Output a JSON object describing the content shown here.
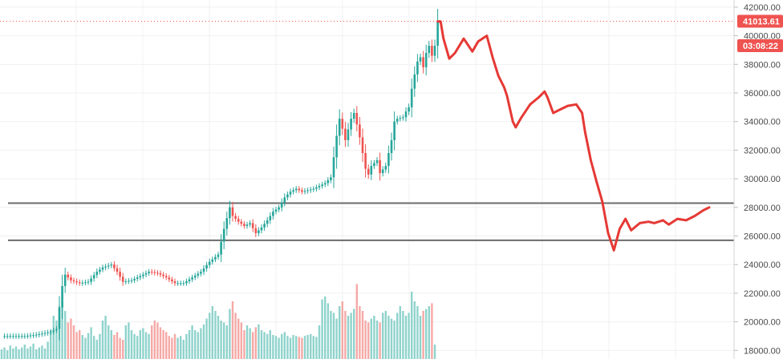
{
  "chart_data": {
    "type": "candlestick",
    "title": "",
    "xlabel": "",
    "ylabel": "",
    "ylim": [
      17400,
      42500
    ],
    "y_ticks": [
      "18000.00",
      "20000.00",
      "22000.00",
      "24000.00",
      "26000.00",
      "28000.00",
      "30000.00",
      "32000.00",
      "34000.00",
      "36000.00",
      "38000.00",
      "40000.00",
      "42000.00"
    ],
    "y_tick_values": [
      18000,
      20000,
      22000,
      24000,
      26000,
      28000,
      30000,
      32000,
      34000,
      36000,
      38000,
      40000,
      42000
    ],
    "grid": true,
    "last_price": 41013.61,
    "last_price_label": "41013.61",
    "countdown_label": "03:08:22",
    "horizontal_levels": [
      28300,
      25700
    ],
    "price_path": [
      [
        0,
        19000
      ],
      [
        8,
        19000
      ],
      [
        12,
        19100
      ],
      [
        17,
        19300
      ],
      [
        19,
        19500
      ],
      [
        20,
        21000
      ],
      [
        21,
        22500
      ],
      [
        22,
        23300
      ],
      [
        24,
        22900
      ],
      [
        27,
        22700
      ],
      [
        30,
        22800
      ],
      [
        33,
        23500
      ],
      [
        35,
        23800
      ],
      [
        38,
        24000
      ],
      [
        40,
        23500
      ],
      [
        42,
        22800
      ],
      [
        45,
        22900
      ],
      [
        48,
        23200
      ],
      [
        51,
        23500
      ],
      [
        54,
        23400
      ],
      [
        57,
        23100
      ],
      [
        60,
        22700
      ],
      [
        63,
        22700
      ],
      [
        66,
        23100
      ],
      [
        69,
        23500
      ],
      [
        72,
        24200
      ],
      [
        75,
        24700
      ],
      [
        77,
        26500
      ],
      [
        79,
        28000
      ],
      [
        80,
        27400
      ],
      [
        82,
        27000
      ],
      [
        84,
        26700
      ],
      [
        86,
        26900
      ],
      [
        88,
        26200
      ],
      [
        90,
        26600
      ],
      [
        92,
        27100
      ],
      [
        94,
        27700
      ],
      [
        96,
        28000
      ],
      [
        98,
        28700
      ],
      [
        100,
        29100
      ],
      [
        102,
        29300
      ],
      [
        104,
        29100
      ],
      [
        106,
        29200
      ],
      [
        108,
        29300
      ],
      [
        110,
        29500
      ],
      [
        112,
        29700
      ],
      [
        114,
        30100
      ],
      [
        115,
        31500
      ],
      [
        116,
        33000
      ],
      [
        117,
        34200
      ],
      [
        118,
        33500
      ],
      [
        119,
        32700
      ],
      [
        121,
        34200
      ],
      [
        122,
        34600
      ],
      [
        123,
        33800
      ],
      [
        124,
        32900
      ],
      [
        125,
        31800
      ],
      [
        126,
        30700
      ],
      [
        127,
        30300
      ],
      [
        128,
        30900
      ],
      [
        130,
        31300
      ],
      [
        131,
        30400
      ],
      [
        133,
        30900
      ],
      [
        134,
        31800
      ],
      [
        135,
        32700
      ],
      [
        136,
        34000
      ],
      [
        137,
        34200
      ],
      [
        139,
        34300
      ],
      [
        140,
        34700
      ],
      [
        141,
        35000
      ],
      [
        142,
        36300
      ],
      [
        143,
        37300
      ],
      [
        144,
        38200
      ],
      [
        145,
        38500
      ],
      [
        146,
        37800
      ],
      [
        147,
        38800
      ],
      [
        148,
        39300
      ],
      [
        149,
        38600
      ],
      [
        150,
        39300
      ],
      [
        151,
        41000
      ]
    ],
    "projection": [
      [
        151,
        41000
      ],
      [
        152,
        41000
      ],
      [
        153,
        39800
      ],
      [
        155,
        38400
      ],
      [
        157,
        38800
      ],
      [
        160,
        39800
      ],
      [
        161,
        39500
      ],
      [
        163,
        38900
      ],
      [
        165,
        39600
      ],
      [
        168,
        40000
      ],
      [
        170,
        38500
      ],
      [
        172,
        37200
      ],
      [
        174,
        36400
      ],
      [
        175,
        35800
      ],
      [
        177,
        34000
      ],
      [
        178,
        33600
      ],
      [
        180,
        34300
      ],
      [
        183,
        35200
      ],
      [
        186,
        35700
      ],
      [
        188,
        36100
      ],
      [
        189,
        35700
      ],
      [
        191,
        34600
      ],
      [
        193,
        34800
      ],
      [
        196,
        35100
      ],
      [
        199,
        35200
      ],
      [
        201,
        34600
      ],
      [
        202,
        33300
      ],
      [
        204,
        31300
      ],
      [
        206,
        29800
      ],
      [
        208,
        28400
      ],
      [
        210,
        26200
      ],
      [
        212,
        25000
      ],
      [
        214,
        26500
      ],
      [
        216,
        27200
      ],
      [
        218,
        26400
      ],
      [
        221,
        26900
      ],
      [
        224,
        27000
      ],
      [
        226,
        26900
      ],
      [
        229,
        27100
      ],
      [
        231,
        26800
      ],
      [
        234,
        27200
      ],
      [
        237,
        27100
      ],
      [
        240,
        27400
      ],
      [
        243,
        27800
      ],
      [
        245,
        28000
      ]
    ],
    "volume_heights": [
      0.1,
      0.12,
      0.09,
      0.14,
      0.11,
      0.13,
      0.1,
      0.12,
      0.15,
      0.11,
      0.13,
      0.16,
      0.1,
      0.12,
      0.14,
      0.11,
      0.18,
      0.3,
      0.45,
      0.4,
      0.55,
      0.6,
      0.5,
      0.38,
      0.42,
      0.35,
      0.28,
      0.3,
      0.25,
      0.22,
      0.27,
      0.33,
      0.24,
      0.2,
      0.26,
      0.4,
      0.45,
      0.35,
      0.3,
      0.25,
      0.28,
      0.22,
      0.2,
      0.35,
      0.38,
      0.3,
      0.26,
      0.24,
      0.3,
      0.32,
      0.28,
      0.26,
      0.35,
      0.4,
      0.38,
      0.33,
      0.3,
      0.28,
      0.24,
      0.22,
      0.26,
      0.22,
      0.24,
      0.2,
      0.26,
      0.3,
      0.35,
      0.3,
      0.28,
      0.32,
      0.36,
      0.42,
      0.48,
      0.55,
      0.5,
      0.45,
      0.4,
      0.38,
      0.35,
      0.52,
      0.6,
      0.48,
      0.42,
      0.38,
      0.3,
      0.35,
      0.32,
      0.28,
      0.33,
      0.36,
      0.3,
      0.28,
      0.26,
      0.3,
      0.25,
      0.24,
      0.22,
      0.26,
      0.28,
      0.24,
      0.22,
      0.25,
      0.24,
      0.23,
      0.22,
      0.24,
      0.25,
      0.26,
      0.24,
      0.23,
      0.35,
      0.62,
      0.65,
      0.58,
      0.5,
      0.48,
      0.42,
      0.55,
      0.6,
      0.5,
      0.45,
      0.48,
      0.52,
      0.78,
      0.55,
      0.5,
      0.4,
      0.38,
      0.42,
      0.45,
      0.4,
      0.38,
      0.48,
      0.5,
      0.45,
      0.42,
      0.4,
      0.48,
      0.55,
      0.5,
      0.45,
      0.48,
      0.7,
      0.6,
      0.55,
      0.45,
      0.5,
      0.52,
      0.55,
      0.58,
      0.15
    ]
  }
}
